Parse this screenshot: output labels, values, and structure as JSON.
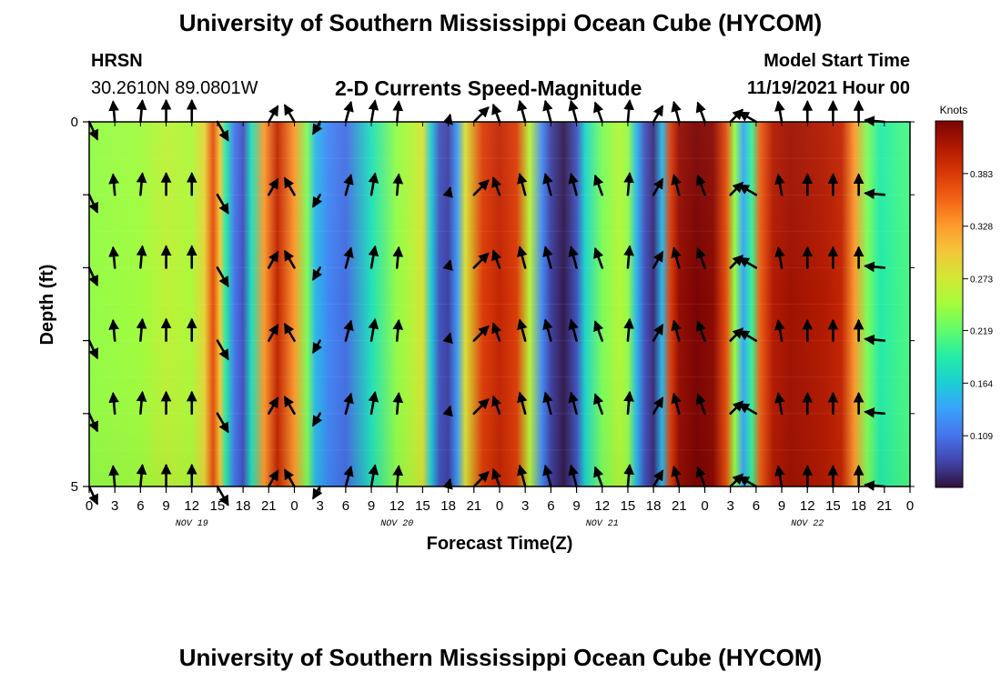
{
  "header": {
    "title": "University of Southern Mississippi Ocean Cube (HYCOM)",
    "station": "HRSN",
    "coords": "30.2610N  89.0801W",
    "plot_title": "2-D Currents Speed-Magnitude",
    "start_label": "Model Start Time",
    "start_value": "11/19/2021 Hour 00"
  },
  "footer": {
    "title": "University of Southern Mississippi Ocean Cube (HYCOM)"
  },
  "colors": {
    "colormap": [
      "#30123b",
      "#4145ab",
      "#4675ed",
      "#39a2fc",
      "#1bcfd4",
      "#24eca6",
      "#61fc6c",
      "#a4fc3b",
      "#d1e834",
      "#f3c63a",
      "#fe9b2d",
      "#f36315",
      "#d93806",
      "#b11901",
      "#7a0402"
    ]
  },
  "chart_data": {
    "type": "heatmap",
    "title": "2-D Currents Speed-Magnitude",
    "xlabel": "Forecast Time(Z)",
    "ylabel": "Depth (ft)",
    "colorbar_label": "Knots",
    "colorbar_ticks": [
      "0.383",
      "0.328",
      "0.273",
      "0.219",
      "0.164",
      "0.109"
    ],
    "colorbar_tick_values": [
      0.383,
      0.328,
      0.273,
      0.219,
      0.164,
      0.109
    ],
    "color_range": [
      0.055,
      0.438
    ],
    "x_range": [
      0,
      96
    ],
    "y_range": [
      0,
      5
    ],
    "y_ticks": [
      "0",
      "5"
    ],
    "x_tick_hours": [
      0,
      3,
      6,
      9,
      12,
      15,
      18,
      21,
      24,
      27,
      30,
      33,
      36,
      39,
      42,
      45,
      48,
      51,
      54,
      57,
      60,
      63,
      66,
      69,
      72,
      75,
      78,
      81,
      84,
      87,
      90,
      93,
      96
    ],
    "x_tick_labels": [
      "0",
      "3",
      "6",
      "9",
      "12",
      "15",
      "18",
      "21",
      "0",
      "3",
      "6",
      "9",
      "12",
      "15",
      "18",
      "21",
      "0",
      "3",
      "6",
      "9",
      "12",
      "15",
      "18",
      "21",
      "0",
      "3",
      "6",
      "9",
      "12",
      "15",
      "18",
      "21",
      "0"
    ],
    "date_labels": [
      {
        "hour": 12,
        "text": "NOV 19"
      },
      {
        "hour": 36,
        "text": "NOV 20"
      },
      {
        "hour": 60,
        "text": "NOV 21"
      },
      {
        "hour": 84,
        "text": "NOV 22"
      }
    ],
    "speed_profile": [
      {
        "hour": 0,
        "speed": 0.24
      },
      {
        "hour": 6,
        "speed": 0.245
      },
      {
        "hour": 9,
        "speed": 0.262
      },
      {
        "hour": 12,
        "speed": 0.252
      },
      {
        "hour": 13.5,
        "speed": 0.29
      },
      {
        "hour": 14.5,
        "speed": 0.37
      },
      {
        "hour": 15.3,
        "speed": 0.3
      },
      {
        "hour": 16,
        "speed": 0.19
      },
      {
        "hour": 17,
        "speed": 0.11
      },
      {
        "hour": 18,
        "speed": 0.09
      },
      {
        "hour": 19,
        "speed": 0.18
      },
      {
        "hour": 20.5,
        "speed": 0.33
      },
      {
        "hour": 22,
        "speed": 0.4
      },
      {
        "hour": 24,
        "speed": 0.33
      },
      {
        "hour": 25.5,
        "speed": 0.23
      },
      {
        "hour": 26.5,
        "speed": 0.15
      },
      {
        "hour": 28,
        "speed": 0.12
      },
      {
        "hour": 30,
        "speed": 0.105
      },
      {
        "hour": 33,
        "speed": 0.18
      },
      {
        "hour": 36,
        "speed": 0.24
      },
      {
        "hour": 38,
        "speed": 0.26
      },
      {
        "hour": 39,
        "speed": 0.28
      },
      {
        "hour": 40,
        "speed": 0.16
      },
      {
        "hour": 41,
        "speed": 0.09
      },
      {
        "hour": 42,
        "speed": 0.08
      },
      {
        "hour": 43,
        "speed": 0.13
      },
      {
        "hour": 44,
        "speed": 0.28
      },
      {
        "hour": 46,
        "speed": 0.38
      },
      {
        "hour": 48,
        "speed": 0.4
      },
      {
        "hour": 50,
        "speed": 0.38
      },
      {
        "hour": 51.5,
        "speed": 0.26
      },
      {
        "hour": 53,
        "speed": 0.12
      },
      {
        "hour": 54,
        "speed": 0.08
      },
      {
        "hour": 55.5,
        "speed": 0.06
      },
      {
        "hour": 57,
        "speed": 0.09
      },
      {
        "hour": 58,
        "speed": 0.17
      },
      {
        "hour": 60,
        "speed": 0.23
      },
      {
        "hour": 62,
        "speed": 0.255
      },
      {
        "hour": 63,
        "speed": 0.24
      },
      {
        "hour": 64,
        "speed": 0.15
      },
      {
        "hour": 65,
        "speed": 0.09
      },
      {
        "hour": 66,
        "speed": 0.07
      },
      {
        "hour": 67,
        "speed": 0.15
      },
      {
        "hour": 68,
        "speed": 0.38
      },
      {
        "hour": 69,
        "speed": 0.425
      },
      {
        "hour": 71,
        "speed": 0.44
      },
      {
        "hour": 73,
        "speed": 0.43
      },
      {
        "hour": 74.5,
        "speed": 0.37
      },
      {
        "hour": 75.5,
        "speed": 0.24
      },
      {
        "hour": 76.5,
        "speed": 0.14
      },
      {
        "hour": 77.5,
        "speed": 0.2
      },
      {
        "hour": 78.5,
        "speed": 0.36
      },
      {
        "hour": 80,
        "speed": 0.41
      },
      {
        "hour": 82,
        "speed": 0.42
      },
      {
        "hour": 86,
        "speed": 0.41
      },
      {
        "hour": 88,
        "speed": 0.4
      },
      {
        "hour": 89.5,
        "speed": 0.33
      },
      {
        "hour": 91,
        "speed": 0.23
      },
      {
        "hour": 92.5,
        "speed": 0.19
      },
      {
        "hour": 94,
        "speed": 0.2
      },
      {
        "hour": 96,
        "speed": 0.21
      }
    ],
    "vector_depths_ft": [
      0,
      1,
      2,
      3,
      4,
      5
    ],
    "vectors": [
      {
        "hour": 0,
        "dir": 155,
        "len": 0.85
      },
      {
        "hour": 3,
        "dir": 355,
        "len": 0.9
      },
      {
        "hour": 6,
        "dir": 5,
        "len": 0.95
      },
      {
        "hour": 9,
        "dir": 0,
        "len": 0.95
      },
      {
        "hour": 12,
        "dir": 0,
        "len": 0.95
      },
      {
        "hour": 15,
        "dir": 150,
        "len": 0.95
      },
      {
        "hour": 21,
        "dir": 30,
        "len": 0.8
      },
      {
        "hour": 24,
        "dir": 330,
        "len": 0.85
      },
      {
        "hour": 27,
        "dir": 210,
        "len": 0.6
      },
      {
        "hour": 30,
        "dir": 15,
        "len": 0.9
      },
      {
        "hour": 33,
        "dir": 10,
        "len": 0.95
      },
      {
        "hour": 36,
        "dir": 5,
        "len": 0.9
      },
      {
        "hour": 42,
        "dir": 15,
        "len": 0.3
      },
      {
        "hour": 45,
        "dir": 45,
        "len": 0.9
      },
      {
        "hour": 48,
        "dir": 340,
        "len": 0.8
      },
      {
        "hour": 51,
        "dir": 345,
        "len": 0.95
      },
      {
        "hour": 54,
        "dir": 345,
        "len": 0.95
      },
      {
        "hour": 57,
        "dir": 345,
        "len": 0.95
      },
      {
        "hour": 60,
        "dir": 340,
        "len": 0.9
      },
      {
        "hour": 63,
        "dir": 5,
        "len": 0.95
      },
      {
        "hour": 66,
        "dir": 30,
        "len": 0.8
      },
      {
        "hour": 69,
        "dir": 345,
        "len": 0.9
      },
      {
        "hour": 72,
        "dir": 340,
        "len": 0.9
      },
      {
        "hour": 75,
        "dir": 45,
        "len": 0.75
      },
      {
        "hour": 78,
        "dir": 300,
        "len": 0.85
      },
      {
        "hour": 81,
        "dir": 350,
        "len": 0.9
      },
      {
        "hour": 84,
        "dir": 0,
        "len": 0.9
      },
      {
        "hour": 87,
        "dir": 0,
        "len": 0.9
      },
      {
        "hour": 90,
        "dir": 0,
        "len": 0.9
      },
      {
        "hour": 93,
        "dir": 275,
        "len": 0.85
      }
    ]
  }
}
